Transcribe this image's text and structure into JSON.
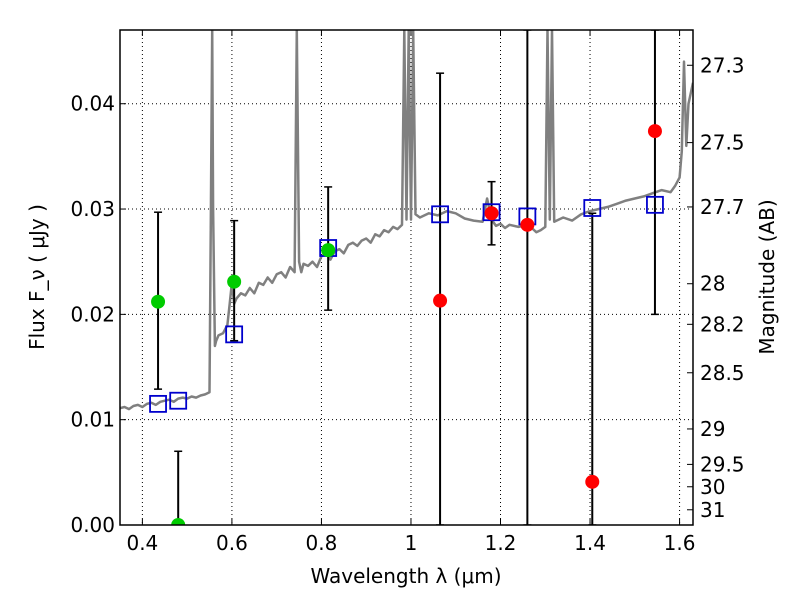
{
  "chart_data": {
    "type": "scatter",
    "xlabel": "Wavelength  λ (μm)",
    "ylabel": "Flux  F_ν  ( μJy )",
    "ylabel_right": "Magnitude (AB)",
    "xlim": [
      0.35,
      1.63
    ],
    "ylim": [
      0.0,
      0.047
    ],
    "grid": true,
    "x_ticks": [
      0.4,
      0.6,
      0.8,
      1.0,
      1.2,
      1.4,
      1.6
    ],
    "x_tick_labels": [
      "0.4",
      "0.6",
      "0.8",
      "1",
      "1.2",
      "1.4",
      "1.6"
    ],
    "y_ticks": [
      0.0,
      0.01,
      0.02,
      0.03,
      0.04
    ],
    "y_tick_labels": [
      "0.00",
      "0.01",
      "0.02",
      "0.03",
      "0.04"
    ],
    "right_ticks": [
      {
        "label": "27.3",
        "value": 27.3
      },
      {
        "label": "27.5",
        "value": 27.5
      },
      {
        "label": "27.7",
        "value": 27.7
      },
      {
        "label": "28",
        "value": 28.0
      },
      {
        "label": "28.2",
        "value": 28.2
      },
      {
        "label": "28.5",
        "value": 28.5
      },
      {
        "label": "29",
        "value": 29.0
      },
      {
        "label": "29.5",
        "value": 29.5
      },
      {
        "label": "30",
        "value": 30.0
      },
      {
        "label": "31",
        "value": 31.0
      }
    ],
    "colors": {
      "model": "#808080",
      "green": "#00cc00",
      "red": "#ff0000",
      "square": "#0000cc",
      "errorbar": "#000000",
      "grid": "#000000"
    },
    "series": [
      {
        "name": "model spectrum",
        "kind": "line",
        "x": [
          0.35,
          0.36,
          0.37,
          0.38,
          0.39,
          0.4,
          0.41,
          0.42,
          0.43,
          0.44,
          0.45,
          0.46,
          0.47,
          0.48,
          0.49,
          0.5,
          0.51,
          0.52,
          0.53,
          0.54,
          0.55,
          0.553,
          0.556,
          0.558,
          0.562,
          0.565,
          0.57,
          0.58,
          0.59,
          0.595,
          0.6,
          0.605,
          0.61,
          0.62,
          0.63,
          0.64,
          0.65,
          0.66,
          0.67,
          0.68,
          0.69,
          0.7,
          0.71,
          0.72,
          0.73,
          0.74,
          0.745,
          0.75,
          0.755,
          0.76,
          0.77,
          0.78,
          0.79,
          0.8,
          0.81,
          0.82,
          0.83,
          0.84,
          0.85,
          0.86,
          0.87,
          0.88,
          0.89,
          0.9,
          0.91,
          0.92,
          0.93,
          0.94,
          0.95,
          0.96,
          0.97,
          0.98,
          0.985,
          0.99,
          0.995,
          1.0,
          1.005,
          1.01,
          1.02,
          1.04,
          1.06,
          1.08,
          1.1,
          1.12,
          1.14,
          1.16,
          1.17,
          1.18,
          1.19,
          1.2,
          1.21,
          1.22,
          1.24,
          1.25,
          1.26,
          1.27,
          1.28,
          1.29,
          1.3,
          1.305,
          1.31,
          1.315,
          1.32,
          1.34,
          1.36,
          1.38,
          1.4,
          1.42,
          1.44,
          1.46,
          1.48,
          1.5,
          1.52,
          1.54,
          1.56,
          1.58,
          1.59,
          1.6,
          1.605,
          1.61,
          1.615,
          1.62,
          1.63
        ],
        "y": [
          0.0111,
          0.0112,
          0.011,
          0.0113,
          0.0114,
          0.0112,
          0.0115,
          0.0116,
          0.0114,
          0.0117,
          0.0118,
          0.0119,
          0.0117,
          0.012,
          0.0121,
          0.012,
          0.0122,
          0.0121,
          0.0123,
          0.0124,
          0.0126,
          0.03,
          0.047,
          0.03,
          0.017,
          0.0175,
          0.018,
          0.0182,
          0.019,
          0.021,
          0.023,
          0.021,
          0.0215,
          0.022,
          0.0218,
          0.0225,
          0.022,
          0.023,
          0.0228,
          0.0235,
          0.023,
          0.0238,
          0.024,
          0.0235,
          0.0245,
          0.024,
          0.047,
          0.025,
          0.024,
          0.0248,
          0.0246,
          0.025,
          0.0245,
          0.0255,
          0.0258,
          0.0252,
          0.026,
          0.0262,
          0.0258,
          0.0266,
          0.0268,
          0.0265,
          0.027,
          0.0272,
          0.0268,
          0.0276,
          0.0274,
          0.028,
          0.0278,
          0.0283,
          0.0281,
          0.0285,
          0.047,
          0.029,
          0.047,
          0.029,
          0.047,
          0.0295,
          0.0292,
          0.0296,
          0.0294,
          0.0298,
          0.0296,
          0.0291,
          0.0289,
          0.0288,
          0.031,
          0.029,
          0.0284,
          0.0286,
          0.0282,
          0.0285,
          0.0283,
          0.0284,
          0.0286,
          0.0282,
          0.0278,
          0.028,
          0.0283,
          0.047,
          0.029,
          0.047,
          0.0288,
          0.0292,
          0.0289,
          0.0295,
          0.0298,
          0.03,
          0.0302,
          0.0305,
          0.0308,
          0.031,
          0.0312,
          0.0315,
          0.0318,
          0.0316,
          0.0322,
          0.033,
          0.0355,
          0.044,
          0.036,
          0.04,
          0.042
        ]
      },
      {
        "name": "green points",
        "kind": "marker",
        "marker": "circle",
        "points": [
          {
            "x": 0.435,
            "y": 0.0212,
            "err_lo": 0.0129,
            "err_hi": 0.0297
          },
          {
            "x": 0.605,
            "y": 0.0231,
            "err_lo": 0.0175,
            "err_hi": 0.0289
          },
          {
            "x": 0.815,
            "y": 0.0261,
            "err_lo": 0.0204,
            "err_hi": 0.0321
          },
          {
            "x": 0.48,
            "y": 0.0,
            "err_lo": 0.0,
            "err_hi": 0.007
          }
        ]
      },
      {
        "name": "red points",
        "kind": "marker",
        "marker": "circle",
        "points": [
          {
            "x": 1.065,
            "y": 0.0213,
            "err_lo": 0.0,
            "err_hi": 0.0429
          },
          {
            "x": 1.18,
            "y": 0.0296,
            "err_lo": 0.0266,
            "err_hi": 0.0326
          },
          {
            "x": 1.26,
            "y": 0.0285,
            "err_lo": 0.0,
            "err_hi": 0.047
          },
          {
            "x": 1.405,
            "y": 0.0041,
            "err_lo": 0.0,
            "err_hi": 0.0296
          },
          {
            "x": 1.545,
            "y": 0.0374,
            "err_lo": 0.02,
            "err_hi": 0.047
          }
        ]
      },
      {
        "name": "model photometry",
        "kind": "marker",
        "marker": "square",
        "points": [
          {
            "x": 0.435,
            "y": 0.0115
          },
          {
            "x": 0.48,
            "y": 0.0118
          },
          {
            "x": 0.605,
            "y": 0.0181
          },
          {
            "x": 0.815,
            "y": 0.0263
          },
          {
            "x": 1.065,
            "y": 0.0295
          },
          {
            "x": 1.18,
            "y": 0.0297
          },
          {
            "x": 1.26,
            "y": 0.0293
          },
          {
            "x": 1.405,
            "y": 0.0301
          },
          {
            "x": 1.545,
            "y": 0.0304
          }
        ]
      }
    ]
  }
}
